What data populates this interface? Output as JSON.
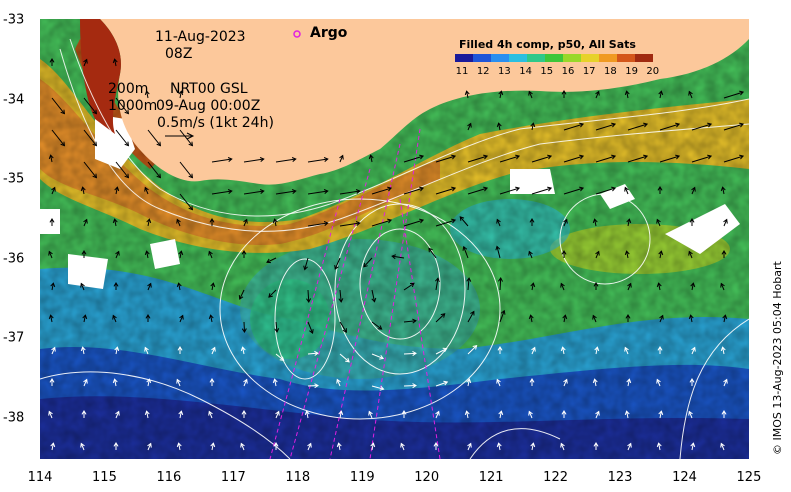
{
  "map": {
    "date": "11-Aug-2023",
    "hour": "08Z",
    "depth_200": "200m",
    "depth_1000": "1000m",
    "product": "NRT00 GSL",
    "product_time": "09-Aug 00:00Z",
    "vector_scale": "0.5m/s (1kt 24h)",
    "argo_label": "Argo",
    "colorbar_title": "Filled 4h comp, p50, All Sats",
    "colorbar_labels": [
      "11",
      "12",
      "13",
      "14",
      "15",
      "16",
      "17",
      "18",
      "19",
      "20"
    ],
    "colorbar_colors": [
      "#1a1a9a",
      "#1f55d8",
      "#2a8ff0",
      "#2bbfe0",
      "#2fc88a",
      "#3ec63a",
      "#98d82a",
      "#e7d22a",
      "#f09a22",
      "#d4561a",
      "#a02a10"
    ],
    "credit": "© IMOS 13-Aug-2023 05:04 Hobart",
    "x_ticks": [
      "114",
      "115",
      "116",
      "117",
      "118",
      "119",
      "120",
      "121",
      "122",
      "123",
      "124",
      "125"
    ],
    "y_ticks": [
      "-33",
      "-34",
      "-35",
      "-36",
      "-37",
      "-38"
    ],
    "land_color": "#fcc89b"
  }
}
